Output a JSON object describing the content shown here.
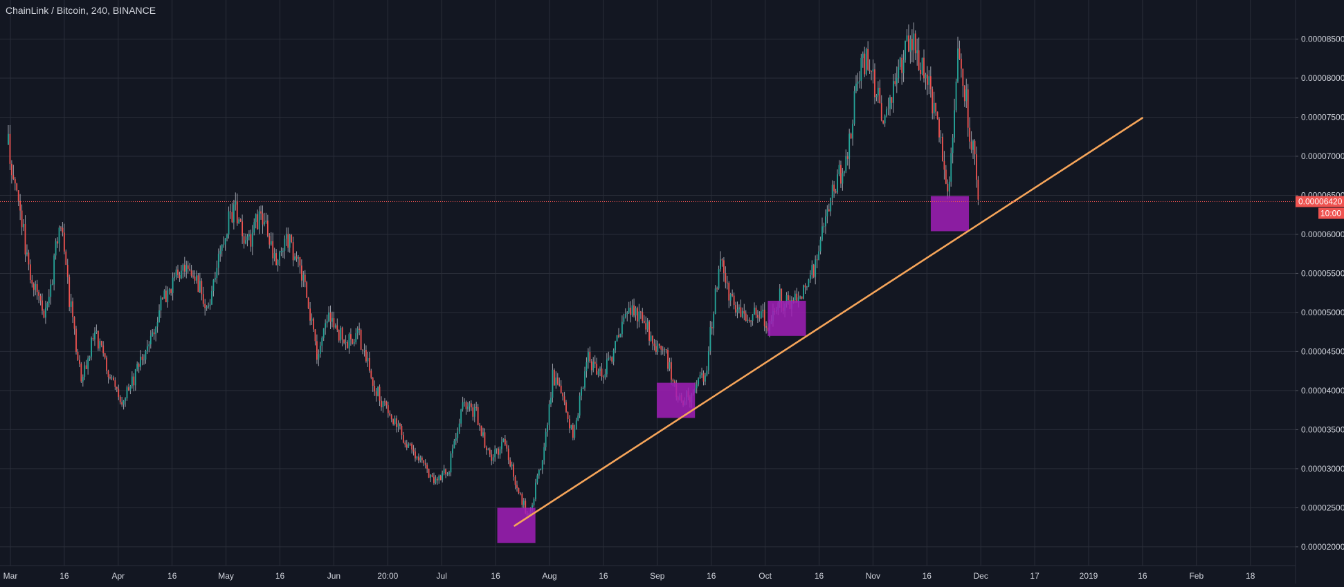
{
  "header": {
    "title": "ChainLink / Bitcoin, 240, BINANCE"
  },
  "colors": {
    "background": "#131722",
    "grid": "#2a2e39",
    "candle_up": "#26a69a",
    "candle_down": "#ef5350",
    "wick": "#c8ccd6",
    "trendline": "#f6a55a",
    "highlight_box": "#a11fb7",
    "price_line": "#ef5350",
    "price_tag": "#ef5350"
  },
  "chart_data": {
    "type": "candlestick",
    "title": "ChainLink / Bitcoin, 240, BINANCE",
    "ylim": [
      1.76e-05,
      9e-05
    ],
    "grid": true,
    "y_ticks": [
      "0.00002000",
      "0.00002500",
      "0.00003000",
      "0.00003500",
      "0.00004000",
      "0.00004500",
      "0.00005000",
      "0.00005500",
      "0.00006000",
      "0.00006500",
      "0.00007000",
      "0.00007500",
      "0.00008000",
      "0.00008500"
    ],
    "x_ticks": [
      "Mar",
      "16",
      "Apr",
      "16",
      "May",
      "16",
      "Jun",
      "20:00",
      "Jul",
      "16",
      "Aug",
      "16",
      "Sep",
      "16",
      "Oct",
      "16",
      "Nov",
      "16",
      "Dec",
      "17",
      "2019",
      "16",
      "Feb",
      "18"
    ],
    "x_range": [
      "2018-03-01",
      "2019-02-28"
    ],
    "price_path": [
      [
        "2018-03-01",
        7.15e-05
      ],
      [
        "2018-03-04",
        6.4e-05
      ],
      [
        "2018-03-08",
        5.3e-05
      ],
      [
        "2018-03-12",
        5e-05
      ],
      [
        "2018-03-16",
        6.15e-05
      ],
      [
        "2018-03-19",
        5.05e-05
      ],
      [
        "2018-03-22",
        4.15e-05
      ],
      [
        "2018-03-26",
        4.75e-05
      ],
      [
        "2018-03-30",
        4.2e-05
      ],
      [
        "2018-04-02",
        3.85e-05
      ],
      [
        "2018-04-06",
        4.15e-05
      ],
      [
        "2018-04-10",
        4.5e-05
      ],
      [
        "2018-04-14",
        5.1e-05
      ],
      [
        "2018-04-19",
        5.5e-05
      ],
      [
        "2018-04-24",
        5.45e-05
      ],
      [
        "2018-04-28",
        5.05e-05
      ],
      [
        "2018-05-02",
        6e-05
      ],
      [
        "2018-05-05",
        6.35e-05
      ],
      [
        "2018-05-09",
        5.85e-05
      ],
      [
        "2018-05-13",
        6.3e-05
      ],
      [
        "2018-05-17",
        5.6e-05
      ],
      [
        "2018-05-21",
        5.95e-05
      ],
      [
        "2018-05-25",
        5.4e-05
      ],
      [
        "2018-05-29",
        4.5e-05
      ],
      [
        "2018-06-02",
        4.95e-05
      ],
      [
        "2018-06-06",
        4.6e-05
      ],
      [
        "2018-06-10",
        4.7e-05
      ],
      [
        "2018-06-15",
        4e-05
      ],
      [
        "2018-06-20",
        3.6e-05
      ],
      [
        "2018-06-26",
        3.2e-05
      ],
      [
        "2018-07-02",
        2.85e-05
      ],
      [
        "2018-07-06",
        3e-05
      ],
      [
        "2018-07-10",
        3.8e-05
      ],
      [
        "2018-07-14",
        3.7e-05
      ],
      [
        "2018-07-18",
        3.1e-05
      ],
      [
        "2018-07-22",
        3.35e-05
      ],
      [
        "2018-07-26",
        2.7e-05
      ],
      [
        "2018-07-29",
        2.4e-05
      ],
      [
        "2018-08-02",
        3.1e-05
      ],
      [
        "2018-08-05",
        4.2e-05
      ],
      [
        "2018-08-08",
        3.85e-05
      ],
      [
        "2018-08-11",
        3.4e-05
      ],
      [
        "2018-08-15",
        4.4e-05
      ],
      [
        "2018-08-19",
        4.2e-05
      ],
      [
        "2018-08-23",
        4.55e-05
      ],
      [
        "2018-08-27",
        5.05e-05
      ],
      [
        "2018-08-31",
        4.9e-05
      ],
      [
        "2018-09-03",
        4.65e-05
      ],
      [
        "2018-09-07",
        4.4e-05
      ],
      [
        "2018-09-10",
        3.85e-05
      ],
      [
        "2018-09-14",
        3.95e-05
      ],
      [
        "2018-09-18",
        4.2e-05
      ],
      [
        "2018-09-21",
        5.3e-05
      ],
      [
        "2018-09-23",
        5.7e-05
      ],
      [
        "2018-09-25",
        5.15e-05
      ],
      [
        "2018-09-29",
        4.95e-05
      ],
      [
        "2018-10-03",
        5.05e-05
      ],
      [
        "2018-10-06",
        4.8e-05
      ],
      [
        "2018-10-09",
        5.2e-05
      ],
      [
        "2018-10-13",
        5.05e-05
      ],
      [
        "2018-10-17",
        5.4e-05
      ],
      [
        "2018-10-20",
        5.6e-05
      ],
      [
        "2018-10-23",
        6.25e-05
      ],
      [
        "2018-10-26",
        6.7e-05
      ],
      [
        "2018-10-29",
        7e-05
      ],
      [
        "2018-11-01",
        8e-05
      ],
      [
        "2018-11-04",
        8.3e-05
      ],
      [
        "2018-11-08",
        7.5e-05
      ],
      [
        "2018-11-12",
        7.9e-05
      ],
      [
        "2018-11-16",
        8.6e-05
      ],
      [
        "2018-11-20",
        8.1e-05
      ],
      [
        "2018-11-24",
        7.4e-05
      ],
      [
        "2018-11-27",
        6.5e-05
      ],
      [
        "2018-11-30",
        8.5e-05
      ],
      [
        "2018-12-03",
        7.4e-05
      ],
      [
        "2018-12-05",
        6.9e-05
      ],
      [
        "2018-12-06",
        6.42e-05
      ]
    ],
    "trendline": {
      "from": [
        "2018-07-25",
        2.27e-05
      ],
      "to": [
        "2019-01-22",
        7.49e-05
      ],
      "color": "#f6a55a"
    },
    "highlight_boxes": [
      {
        "from": [
          "2018-07-20",
          2.05e-05
        ],
        "to": [
          "2018-07-31",
          2.5e-05
        ]
      },
      {
        "from": [
          "2018-09-04",
          3.65e-05
        ],
        "to": [
          "2018-09-15",
          4.1e-05
        ]
      },
      {
        "from": [
          "2018-10-06",
          4.7e-05
        ],
        "to": [
          "2018-10-17",
          5.15e-05
        ]
      },
      {
        "from": [
          "2018-11-22",
          6.04e-05
        ],
        "to": [
          "2018-12-03",
          6.49e-05
        ]
      }
    ],
    "current_price": {
      "value": 6.42e-05,
      "label": "0.00006420",
      "countdown": "10:00"
    }
  }
}
